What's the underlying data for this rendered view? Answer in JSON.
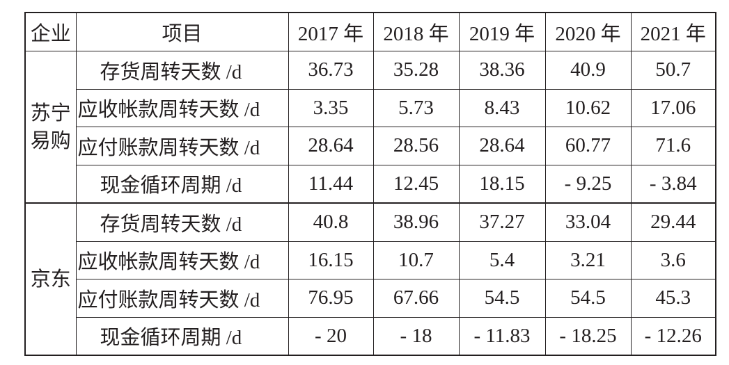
{
  "table": {
    "header": [
      "企业",
      "项目",
      "2017 年",
      "2018 年",
      "2019 年",
      "2020 年",
      "2021 年"
    ],
    "groups": [
      {
        "name": "苏宁易购",
        "rows": [
          {
            "item": "存货周转天数 /d",
            "values": [
              "36.73",
              "35.28",
              "38.36",
              "40.9",
              "50.7"
            ]
          },
          {
            "item": "应收帐款周转天数 /d",
            "values": [
              "3.35",
              "5.73",
              "8.43",
              "10.62",
              "17.06"
            ]
          },
          {
            "item": "应付账款周转天数 /d",
            "values": [
              "28.64",
              "28.56",
              "28.64",
              "60.77",
              "71.6"
            ]
          },
          {
            "item": "现金循环周期 /d",
            "values": [
              "11.44",
              "12.45",
              "18.15",
              "- 9.25",
              "- 3.84"
            ]
          }
        ]
      },
      {
        "name": "京东",
        "rows": [
          {
            "item": "存货周转天数 /d",
            "values": [
              "40.8",
              "38.96",
              "37.27",
              "33.04",
              "29.44"
            ]
          },
          {
            "item": "应收帐款周转天数 /d",
            "values": [
              "16.15",
              "10.7",
              "5.4",
              "3.21",
              "3.6"
            ]
          },
          {
            "item": "应付账款周转天数 /d",
            "values": [
              "76.95",
              "67.66",
              "54.5",
              "54.5",
              "45.3"
            ]
          },
          {
            "item": "现金循环周期 /d",
            "values": [
              "- 20",
              "- 18",
              "- 11.83",
              "- 18.25",
              "- 12.26"
            ]
          }
        ]
      }
    ]
  }
}
